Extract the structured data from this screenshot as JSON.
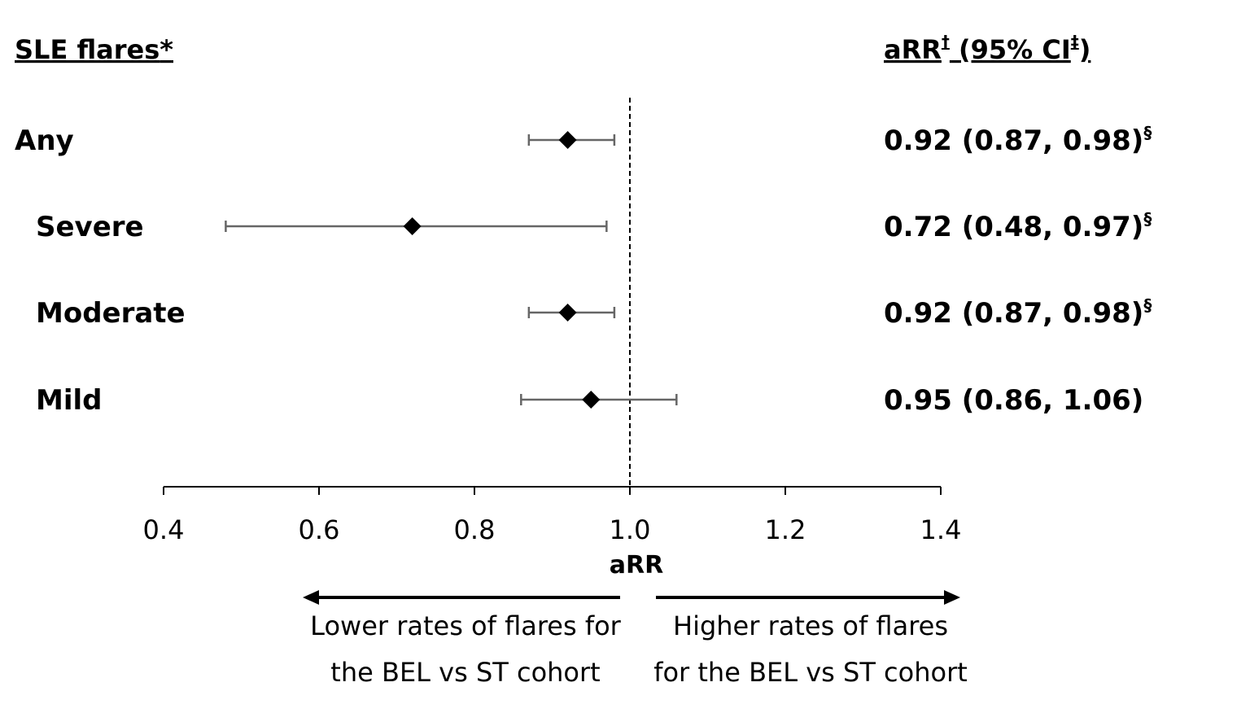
{
  "chart_data": {
    "type": "forest",
    "left_header": {
      "text": "SLE flares",
      "suffix": "*"
    },
    "right_header": {
      "text": "aRR",
      "sup1": "†",
      "mid": " (95% CI",
      "sup2": "‡",
      "end": ")"
    },
    "xlabel": "aRR",
    "xlim": [
      0.4,
      1.4
    ],
    "reference_line": 1.0,
    "ticks": [
      0.4,
      0.6,
      0.8,
      1.0,
      1.2,
      1.4
    ],
    "tick_labels": [
      "0.4",
      "0.6",
      "0.8",
      "1.0",
      "1.2",
      "1.4"
    ],
    "rows": [
      {
        "label": "Any",
        "estimate": 0.92,
        "lower": 0.87,
        "upper": 0.98,
        "value_text": "0.92 (0.87, 0.98)",
        "mark": "§"
      },
      {
        "label": "Severe",
        "estimate": 0.72,
        "lower": 0.48,
        "upper": 0.97,
        "value_text": "0.72 (0.48, 0.97)",
        "mark": "§"
      },
      {
        "label": "Moderate",
        "estimate": 0.92,
        "lower": 0.87,
        "upper": 0.98,
        "value_text": "0.92 (0.87, 0.98)",
        "mark": "§"
      },
      {
        "label": "Mild",
        "estimate": 0.95,
        "lower": 0.86,
        "upper": 1.06,
        "value_text": "0.95 (0.86, 1.06)",
        "mark": ""
      }
    ],
    "left_note": [
      "Lower rates of flares for",
      "the BEL vs ST cohort"
    ],
    "right_note": [
      "Higher rates of flares",
      "for the BEL vs ST cohort"
    ]
  }
}
